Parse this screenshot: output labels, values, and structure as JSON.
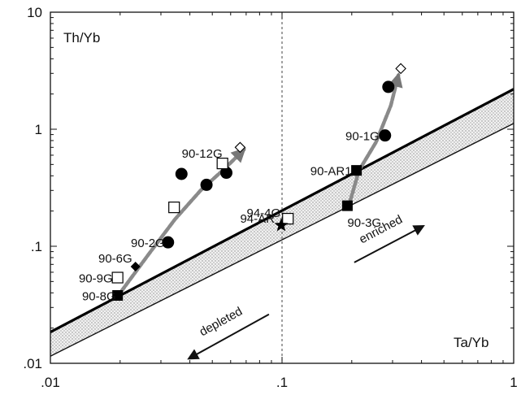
{
  "chart_data": {
    "type": "scatter",
    "xscale": "log",
    "yscale": "log",
    "xlim": [
      0.01,
      1
    ],
    "ylim": [
      0.01,
      10
    ],
    "xlabel": "Ta/Yb",
    "ylabel": "Th/Yb",
    "x_ticks": [
      ".01",
      ".1",
      "1"
    ],
    "y_ticks": [
      ".01",
      ".1",
      "1",
      "10"
    ],
    "reference_x": 0.1,
    "annotations": [
      "enriched",
      "depleted"
    ],
    "mantle_array": {
      "upper_line": [
        [
          0.01,
          0.0185
        ],
        [
          1,
          2.2
        ]
      ],
      "lower_line": [
        [
          0.01,
          0.0115
        ],
        [
          1,
          1.12
        ]
      ]
    },
    "points": [
      {
        "label": "90-8G",
        "marker": "square-filled",
        "x": 0.0195,
        "y": 0.038
      },
      {
        "label": "90-9G",
        "marker": "square-open",
        "x": 0.0195,
        "y": 0.054
      },
      {
        "label": "90-6G",
        "marker": "diamond-filled",
        "x": 0.0233,
        "y": 0.067
      },
      {
        "label": "90-2G",
        "marker": "circle-filled",
        "x": 0.0322,
        "y": 0.108
      },
      {
        "label": "",
        "marker": "square-open",
        "x": 0.0342,
        "y": 0.215
      },
      {
        "label": "",
        "marker": "circle-filled",
        "x": 0.0368,
        "y": 0.415
      },
      {
        "label": "",
        "marker": "circle-filled",
        "x": 0.0472,
        "y": 0.335
      },
      {
        "label": "",
        "marker": "circle-filled",
        "x": 0.0575,
        "y": 0.425
      },
      {
        "label": "90-12G",
        "marker": "square-open",
        "x": 0.0553,
        "y": 0.51
      },
      {
        "label": "",
        "marker": "diamond-open",
        "x": 0.0659,
        "y": 0.7
      },
      {
        "label": "94-4G",
        "marker": "square-open",
        "x": 0.106,
        "y": 0.172
      },
      {
        "label": "94-AR",
        "marker": "star-filled",
        "x": 0.0992,
        "y": 0.151
      },
      {
        "label": "90-3G",
        "marker": "square-filled",
        "x": 0.1915,
        "y": 0.222
      },
      {
        "label": "90-AR1",
        "marker": "square-filled",
        "x": 0.2096,
        "y": 0.445
      },
      {
        "label": "90-1G",
        "marker": "circle-filled",
        "x": 0.2784,
        "y": 0.885
      },
      {
        "label": "",
        "marker": "circle-filled",
        "x": 0.2877,
        "y": 2.3
      },
      {
        "label": "",
        "marker": "diamond-open",
        "x": 0.3256,
        "y": 3.3
      }
    ],
    "trends": [
      [
        [
          0.0202,
          0.041
        ],
        [
          0.0265,
          0.085
        ],
        [
          0.0345,
          0.17
        ],
        [
          0.0445,
          0.3
        ],
        [
          0.0565,
          0.46
        ],
        [
          0.0685,
          0.67
        ]
      ],
      [
        [
          0.197,
          0.245
        ],
        [
          0.215,
          0.445
        ],
        [
          0.255,
          0.78
        ],
        [
          0.295,
          1.6
        ],
        [
          0.318,
          2.9
        ]
      ]
    ],
    "arrows": [
      {
        "label": "enriched",
        "from": [
          0.205,
          0.0728
        ],
        "to": [
          0.406,
          0.1484
        ]
      },
      {
        "label": "depleted",
        "from": [
          0.0878,
          0.0262
        ],
        "to": [
          0.0397,
          0.011
        ]
      }
    ]
  }
}
